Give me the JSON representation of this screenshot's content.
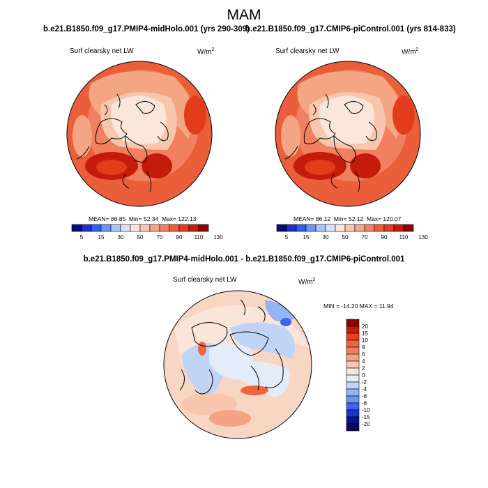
{
  "title": "MAM",
  "panels": [
    {
      "case_title": "b.e21.B1850.f09_g17.PMIP4-midHolo.001 (yrs 290-309)",
      "variable": "Surf clearsky net LW",
      "units_base": "W/m",
      "units_exp": "2",
      "mean_label": "MEAN=",
      "mean": "86.85",
      "min_label": "Min=",
      "min": "52.34",
      "max_label": "Max=",
      "max": "122.13"
    },
    {
      "case_title": "b.e21.B1850.f09_g17.CMIP6-piControl.001 (yrs 814-833)",
      "variable": "Surf clearsky net LW",
      "units_base": "W/m",
      "units_exp": "2",
      "mean_label": "MEAN=",
      "mean": "86.12",
      "min_label": "Min=",
      "min": "52.12",
      "max_label": "Max=",
      "max": "120.07"
    }
  ],
  "difference": {
    "title": "b.e21.B1850.f09_g17.PMIP4-midHolo.001 - b.e21.B1850.f09_g17.CMIP6-piControl.001",
    "variable": "Surf clearsky net LW",
    "units_base": "W/m",
    "units_exp": "2",
    "stats": "MIN = -14.20 MAX =  11.94"
  },
  "colorbar_main": {
    "labels": [
      "5",
      "15",
      "30",
      "50",
      "70",
      "90",
      "110",
      "130"
    ],
    "colors": [
      "#0a0a7a",
      "#1e2fc4",
      "#2f5ef0",
      "#6a94f5",
      "#aac4f7",
      "#d6e2f8",
      "#fbe6dc",
      "#f8c6ad",
      "#f4a583",
      "#f08060",
      "#ea5e3a",
      "#e23c1c",
      "#c51b0c",
      "#8e0404"
    ]
  },
  "colorbar_diff": {
    "labels": [
      "20",
      "15",
      "10",
      "8",
      "6",
      "4",
      "2",
      "0",
      "-2",
      "-4",
      "-6",
      "-8",
      "-10",
      "-15",
      "-20"
    ],
    "colors": [
      "#8e0404",
      "#c51b0c",
      "#e8401e",
      "#ef6440",
      "#f2815f",
      "#f5a383",
      "#f8c6ad",
      "#fbe4d8",
      "#e3ecf9",
      "#c0d4f6",
      "#94b4f3",
      "#6c94f0",
      "#3d64ec",
      "#1a34d0",
      "#06128e",
      "#0a0a5a"
    ]
  }
}
